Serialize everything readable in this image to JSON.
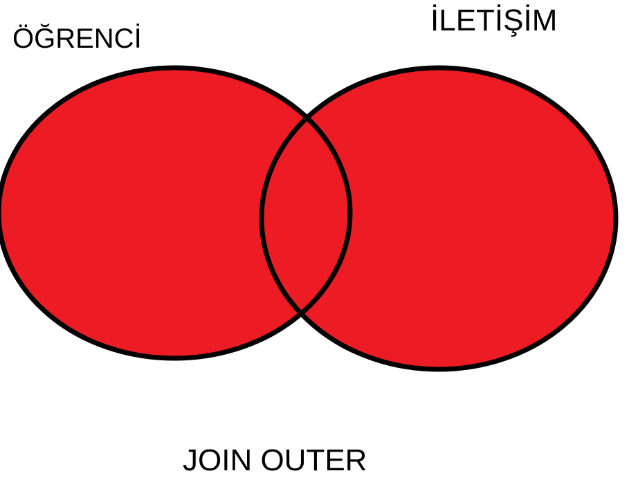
{
  "diagram": {
    "type": "venn",
    "operation": "JOIN OUTER",
    "sets": [
      {
        "id": "left",
        "label": "ÖĞRENCİ",
        "filled": true
      },
      {
        "id": "right",
        "label": "İLETİŞİM",
        "filled": true
      }
    ],
    "intersection_filled": true
  },
  "labels": {
    "left_set": "ÖĞRENCİ",
    "right_set": "İLETİŞİM",
    "caption": "JOIN OUTER"
  },
  "colors": {
    "fill": "#ed1c24",
    "stroke": "#000000",
    "text": "#000000",
    "background": "#ffffff"
  }
}
